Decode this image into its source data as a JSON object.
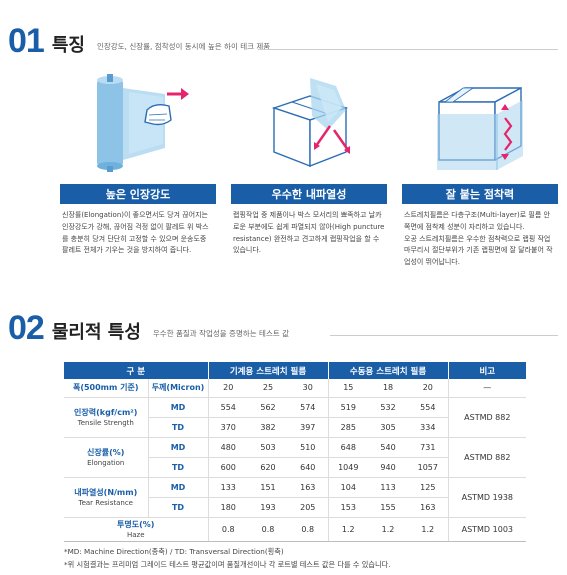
{
  "section1": {
    "number": "01",
    "title": "특징",
    "subtitle": "인장강도, 신장률, 점착성이 동시에 높은 하이 테크 제품"
  },
  "features": [
    {
      "label": "높은 인장강도",
      "desc": "신장률(Elongation)이 좋으면서도 당겨 끊어지는 인장강도가 강해, 끊어짐 걱정 없이 팔레트 위 박스를 충분히 당겨 단단히 고정할 수 있으며 운송도중 팔레트 전체가 기우는 것을 방지하여 줍니다.",
      "icon": "film-roll-hand-icon"
    },
    {
      "label": "우수한 내파열성",
      "desc": "랩핑작업 중 제품이나 박스 모서리의 뾰족하고 날카로운 부분에도 쉽게 파열되지 않아(High puncture resistance) 완전하고 견고하게 랩핑작업을 할 수 있습니다.",
      "icon": "box-corner-film-icon"
    },
    {
      "label": "잘 붙는 점착력",
      "desc": "스트레치필름은 다층구조(Multi-layer)로 필름 안쪽면에 점착제 성분이 자리하고 있습니다.\n오공 스트레치필름은 우수한 점착력으로 랩핑 작업 마무리시 절단부위가 기존 랩핑면에 잘 달라붙어 작업성이 뛰어납니다.",
      "icon": "wrapped-box-icon"
    }
  ],
  "section2": {
    "number": "02",
    "title": "물리적 특성",
    "subtitle": "우수한 품질과 작업성을 증명하는 테스트 값"
  },
  "table": {
    "header": {
      "category": "구 분",
      "machine": "기계용 스트레치 필름",
      "manual": "수동용 스트레치 필름",
      "note": "비고"
    },
    "subheader": {
      "width": "폭(500mm 기준)",
      "thickness": "두께(Micron)",
      "machine": [
        "20",
        "25",
        "30"
      ],
      "manual": [
        "15",
        "18",
        "20"
      ],
      "note": "—"
    },
    "properties": [
      {
        "ko": "인장력(kgf/cm²)",
        "en": "Tensile Strength",
        "note": "ASTMD 882",
        "rows": [
          {
            "dir": "MD",
            "values": [
              "554",
              "562",
              "574",
              "519",
              "532",
              "554"
            ]
          },
          {
            "dir": "TD",
            "values": [
              "370",
              "382",
              "397",
              "285",
              "305",
              "334"
            ]
          }
        ]
      },
      {
        "ko": "신장률(%)",
        "en": "Elongation",
        "note": "ASTMD 882",
        "rows": [
          {
            "dir": "MD",
            "values": [
              "480",
              "503",
              "510",
              "648",
              "540",
              "731"
            ]
          },
          {
            "dir": "TD",
            "values": [
              "600",
              "620",
              "640",
              "1049",
              "940",
              "1057"
            ]
          }
        ]
      },
      {
        "ko": "내파열성(N/mm)",
        "en": "Tear Resistance",
        "note": "ASTMD 1938",
        "rows": [
          {
            "dir": "MD",
            "values": [
              "133",
              "151",
              "163",
              "104",
              "113",
              "125"
            ]
          },
          {
            "dir": "TD",
            "values": [
              "180",
              "193",
              "205",
              "153",
              "155",
              "163"
            ]
          }
        ]
      }
    ],
    "haze": {
      "ko": "투명도(%)",
      "en": "Haze",
      "values": [
        "0.8",
        "0.8",
        "0.8",
        "1.2",
        "1.2",
        "1.2"
      ],
      "note": "ASTMD 1003"
    }
  },
  "footnotes": [
    "*MD: Machine Direction(종축) / TD: Transversal Direction(횡축)",
    "*위 시험결과는 프리미엄 그레이드 테스트 평균값이며 품질개선이나 각 로트별 테스트 값은 다를 수 있습니다."
  ],
  "colors": {
    "accent": "#1a5ea8",
    "arrow": "#e6246e",
    "film": "#a9d4ef"
  }
}
